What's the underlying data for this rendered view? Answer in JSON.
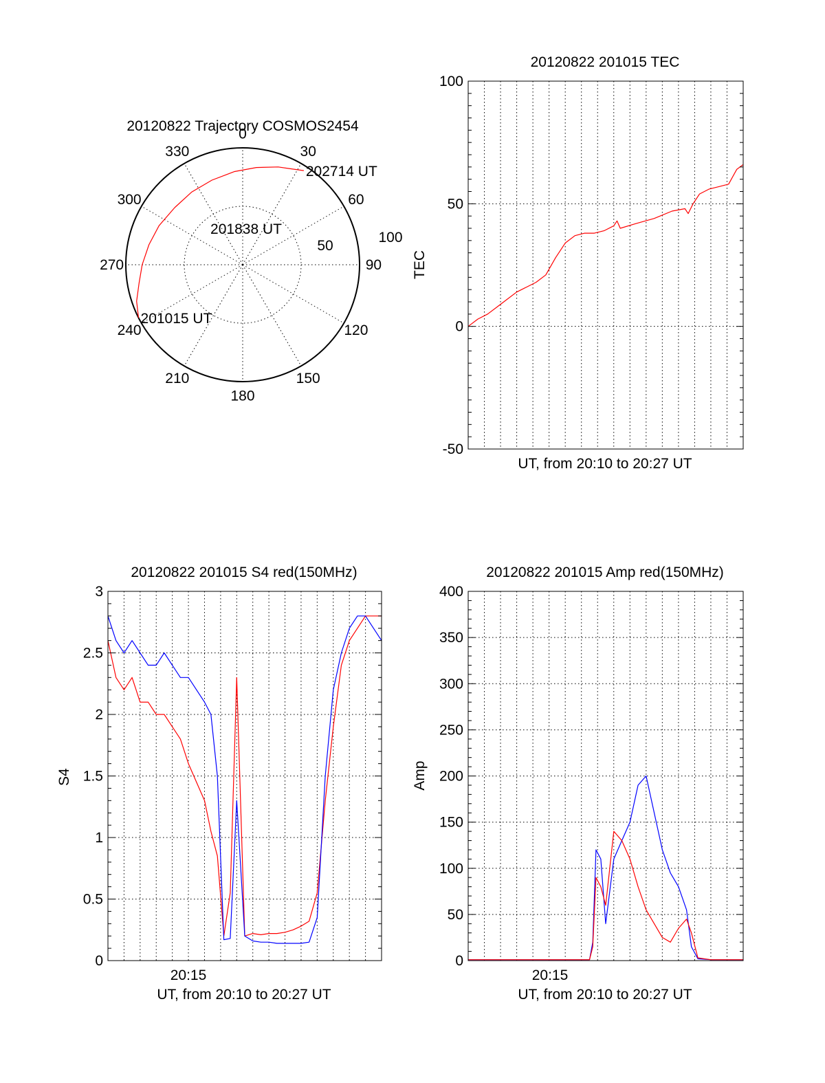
{
  "colors": {
    "red": "#ff0000",
    "blue": "#0000ff",
    "axis": "#000000"
  },
  "chart_data": [
    {
      "type": "polar",
      "title": "20120822 Trajectory COSMOS2454",
      "azimuth_labels": [
        "0",
        "30",
        "60",
        "90",
        "120",
        "150",
        "180",
        "210",
        "240",
        "270",
        "300",
        "330"
      ],
      "radial_labels": [
        "50",
        "100"
      ],
      "rlim": [
        0,
        100
      ],
      "grid": true,
      "series": [
        {
          "color": "red",
          "azimuth_deg": [
            243,
            251,
            260,
            270,
            282,
            295,
            310,
            325,
            340,
            355,
            8,
            20,
            27,
            33
          ],
          "radius": [
            100,
            96,
            90,
            86,
            82,
            79,
            76,
            76,
            77,
            80,
            84,
            89,
            92,
            96
          ]
        }
      ],
      "annotations": [
        {
          "text": "202714 UT",
          "azimuth_deg": 33,
          "radius": 96
        },
        {
          "text": "201838 UT",
          "azimuth_deg": 0,
          "radius": 30
        },
        {
          "text": "201015 UT",
          "azimuth_deg": 243,
          "radius": 100
        }
      ]
    },
    {
      "type": "line",
      "title": "20120822 201015 TEC",
      "xlabel": "UT, from 20:10 to 20:27 UT",
      "ylabel": "TEC",
      "xlim": [
        0,
        17
      ],
      "ylim": [
        -50,
        100
      ],
      "yticks": [
        -50,
        0,
        50,
        100
      ],
      "grid": true,
      "series": [
        {
          "color": "red",
          "x": [
            0,
            0.6,
            1.2,
            1.8,
            2.4,
            3.0,
            3.6,
            4.2,
            4.8,
            5.4,
            6.0,
            6.6,
            7.2,
            7.8,
            8.4,
            9.0,
            9.2,
            9.4,
            10.4,
            11.5,
            12.6,
            13.4,
            13.6,
            13.9,
            14.3,
            14.9,
            15.5,
            16.1,
            16.6,
            17.0
          ],
          "y": [
            0,
            3,
            5,
            8,
            11,
            14,
            16,
            18,
            21,
            28,
            34,
            37,
            38,
            38,
            39,
            41,
            43,
            40,
            42,
            44,
            47,
            48,
            46,
            50,
            54,
            56,
            57,
            58,
            64,
            66
          ]
        }
      ]
    },
    {
      "type": "line",
      "title": "20120822 201015 S4 red(150MHz)",
      "xlabel": "UT, from 20:10 to 20:27 UT",
      "ylabel": "S4",
      "xtick_labels": [
        "20:15"
      ],
      "xlim": [
        0,
        17
      ],
      "ylim": [
        0,
        3
      ],
      "yticks": [
        0,
        0.5,
        1,
        1.5,
        2,
        2.5,
        3
      ],
      "grid": true,
      "series": [
        {
          "color": "red",
          "x": [
            0,
            0.5,
            1,
            1.5,
            2,
            2.5,
            3,
            3.5,
            4,
            4.5,
            5,
            5.5,
            6,
            6.4,
            6.8,
            7.2,
            7.6,
            8.0,
            8.5,
            9,
            9.5,
            10,
            10.5,
            11,
            11.5,
            12,
            12.5,
            13,
            13.5,
            14,
            14.5,
            15,
            15.5,
            16,
            16.5,
            17
          ],
          "y": [
            2.6,
            2.3,
            2.2,
            2.3,
            2.1,
            2.1,
            2.0,
            2.0,
            1.9,
            1.8,
            1.6,
            1.45,
            1.3,
            1.05,
            0.85,
            0.2,
            0.55,
            2.3,
            0.2,
            0.22,
            0.21,
            0.22,
            0.22,
            0.23,
            0.25,
            0.28,
            0.32,
            0.55,
            1.3,
            1.9,
            2.4,
            2.6,
            2.7,
            2.8,
            2.8,
            2.8
          ]
        },
        {
          "color": "blue",
          "x": [
            0,
            0.5,
            1,
            1.5,
            2,
            2.5,
            3,
            3.5,
            4,
            4.5,
            5,
            5.5,
            6,
            6.4,
            6.8,
            7.2,
            7.6,
            8.0,
            8.5,
            9,
            9.5,
            10,
            10.5,
            11,
            11.5,
            12,
            12.5,
            13,
            13.5,
            14,
            14.5,
            15,
            15.5,
            16,
            16.5,
            17
          ],
          "y": [
            2.8,
            2.6,
            2.5,
            2.6,
            2.5,
            2.4,
            2.4,
            2.5,
            2.4,
            2.3,
            2.3,
            2.2,
            2.1,
            2.0,
            1.5,
            0.17,
            0.18,
            1.3,
            0.2,
            0.16,
            0.15,
            0.15,
            0.14,
            0.14,
            0.14,
            0.14,
            0.15,
            0.35,
            1.5,
            2.2,
            2.5,
            2.7,
            2.8,
            2.8,
            2.7,
            2.6
          ]
        }
      ]
    },
    {
      "type": "line",
      "title": "20120822 201015 Amp red(150MHz)",
      "xlabel": "UT, from 20:10 to 20:27 UT",
      "ylabel": "Amp",
      "xtick_labels": [
        "20:15"
      ],
      "xlim": [
        0,
        17
      ],
      "ylim": [
        0,
        400
      ],
      "yticks": [
        0,
        50,
        100,
        150,
        200,
        250,
        300,
        350,
        400
      ],
      "grid": true,
      "series": [
        {
          "color": "blue",
          "x": [
            0,
            3,
            6,
            7.5,
            7.7,
            7.9,
            8.2,
            8.5,
            9.0,
            9.5,
            10,
            10.5,
            11,
            11.5,
            12,
            12.5,
            13,
            13.5,
            13.8,
            14.2,
            15,
            17
          ],
          "y": [
            1,
            1,
            1,
            1,
            20,
            120,
            110,
            40,
            110,
            130,
            150,
            190,
            200,
            160,
            120,
            95,
            80,
            55,
            15,
            2,
            1,
            1
          ]
        },
        {
          "color": "red",
          "x": [
            0,
            3,
            6,
            7.5,
            7.7,
            7.9,
            8.2,
            8.5,
            9.0,
            9.5,
            10,
            10.5,
            11,
            11.5,
            12,
            12.5,
            13,
            13.5,
            13.8,
            14.2,
            15,
            17
          ],
          "y": [
            1,
            1,
            1,
            1,
            15,
            90,
            80,
            60,
            140,
            130,
            110,
            80,
            55,
            40,
            25,
            20,
            35,
            45,
            30,
            3,
            1,
            1
          ]
        }
      ]
    }
  ]
}
